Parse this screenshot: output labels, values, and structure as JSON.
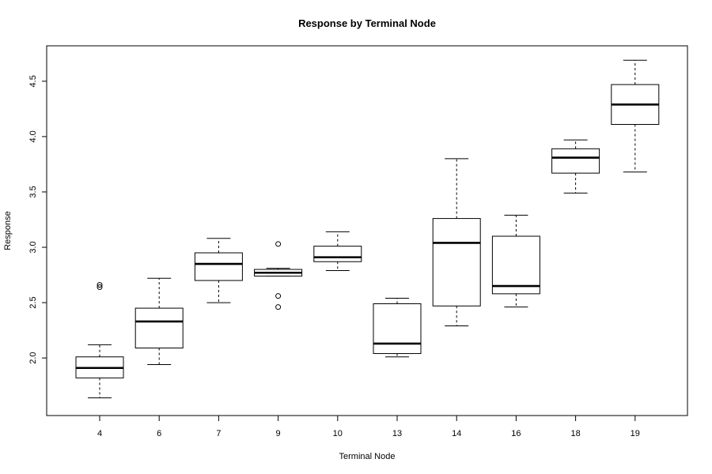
{
  "chart_data": {
    "type": "boxplot",
    "title": "Response by Terminal Node",
    "xlabel": "Terminal Node",
    "ylabel": "Response",
    "ylim": [
      1.48,
      4.82
    ],
    "y_ticks": [
      2.0,
      2.5,
      3.0,
      3.5,
      4.0,
      4.5
    ],
    "y_tick_labels": [
      "2.0",
      "2.5",
      "3.0",
      "3.5",
      "4.0",
      "4.5"
    ],
    "grid": false,
    "categories": [
      "4",
      "6",
      "7",
      "9",
      "10",
      "13",
      "14",
      "16",
      "18",
      "19"
    ],
    "boxes": [
      {
        "category": "4",
        "whisker_low": 1.64,
        "q1": 1.82,
        "median": 1.91,
        "q3": 2.01,
        "whisker_high": 2.12,
        "outliers": [
          2.64,
          2.66
        ]
      },
      {
        "category": "6",
        "whisker_low": 1.94,
        "q1": 2.09,
        "median": 2.33,
        "q3": 2.45,
        "whisker_high": 2.72,
        "outliers": []
      },
      {
        "category": "7",
        "whisker_low": 2.5,
        "q1": 2.7,
        "median": 2.85,
        "q3": 2.95,
        "whisker_high": 3.08,
        "outliers": []
      },
      {
        "category": "9",
        "whisker_low": 2.74,
        "q1": 2.74,
        "median": 2.77,
        "q3": 2.8,
        "whisker_high": 2.81,
        "outliers": [
          2.46,
          2.56,
          3.03
        ]
      },
      {
        "category": "10",
        "whisker_low": 2.79,
        "q1": 2.87,
        "median": 2.91,
        "q3": 3.01,
        "whisker_high": 3.14,
        "outliers": []
      },
      {
        "category": "13",
        "whisker_low": 2.01,
        "q1": 2.04,
        "median": 2.13,
        "q3": 2.49,
        "whisker_high": 2.54,
        "outliers": []
      },
      {
        "category": "14",
        "whisker_low": 2.29,
        "q1": 2.47,
        "median": 3.04,
        "q3": 3.26,
        "whisker_high": 3.8,
        "outliers": []
      },
      {
        "category": "16",
        "whisker_low": 2.46,
        "q1": 2.58,
        "median": 2.65,
        "q3": 3.1,
        "whisker_high": 3.29,
        "outliers": []
      },
      {
        "category": "18",
        "whisker_low": 3.49,
        "q1": 3.67,
        "median": 3.81,
        "q3": 3.89,
        "whisker_high": 3.97,
        "outliers": []
      },
      {
        "category": "19",
        "whisker_low": 3.68,
        "q1": 4.11,
        "median": 4.29,
        "q3": 4.47,
        "whisker_high": 4.69,
        "outliers": []
      }
    ]
  }
}
